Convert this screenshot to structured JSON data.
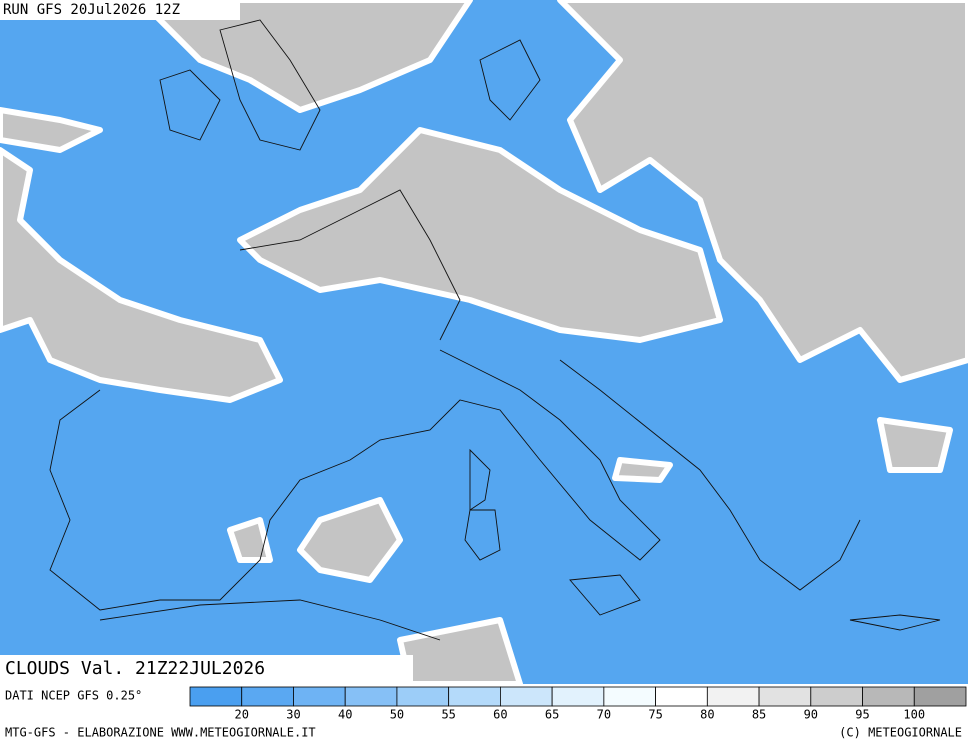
{
  "header": {
    "run": "RUN GFS 20Jul2026 12Z"
  },
  "map": {
    "title": "CLOUDS Val. 21Z22JUL2026"
  },
  "footer": {
    "source": "DATI NCEP GFS 0.25°",
    "credit": "MTG-GFS - ELABORAZIONE WWW.METEOGIORNALE.IT",
    "copyright": "(C) METEOGIORNALE"
  },
  "legend": {
    "ticks": [
      20,
      30,
      40,
      50,
      55,
      60,
      65,
      70,
      75,
      80,
      85,
      90,
      95,
      100
    ],
    "colors": [
      "#4a9ff0",
      "#5aa8f2",
      "#6eb3f4",
      "#86c0f6",
      "#9ccdf8",
      "#b4dafa",
      "#cce6fb",
      "#e2f2fd",
      "#f4fcff",
      "#ffffff",
      "#f2f2f2",
      "#e2e2e2",
      "#cdcdcd",
      "#b8b8b8",
      "#a0a0a0"
    ]
  }
}
